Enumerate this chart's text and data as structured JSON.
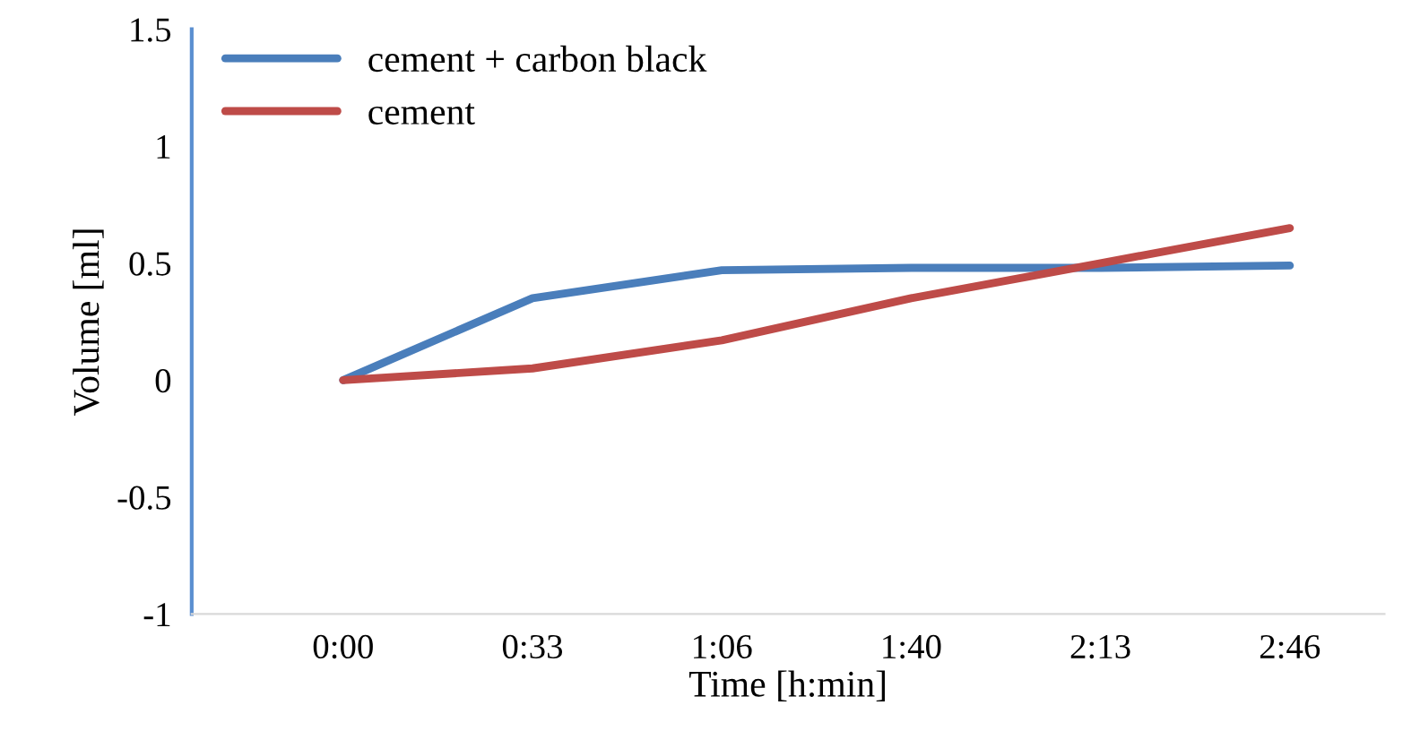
{
  "chart_data": {
    "type": "line",
    "xlabel": "Time [h:min]",
    "ylabel": "Volume [ml]",
    "categories": [
      "0:00",
      "0:33",
      "1:06",
      "1:40",
      "2:13",
      "2:46"
    ],
    "series": [
      {
        "name": "cement + carbon black",
        "color": "#4a7ebb",
        "values": [
          0,
          0.35,
          0.47,
          0.48,
          0.48,
          0.49
        ]
      },
      {
        "name": "cement",
        "color": "#be4b48",
        "values": [
          0,
          0.05,
          0.17,
          0.35,
          0.5,
          0.65
        ]
      }
    ],
    "ylim": [
      -1,
      1.5
    ],
    "yticks": [
      -1,
      -0.5,
      0,
      0.5,
      1,
      1.5
    ],
    "grid": false,
    "legend": "top left",
    "marker": "none",
    "line_style": "solid"
  }
}
